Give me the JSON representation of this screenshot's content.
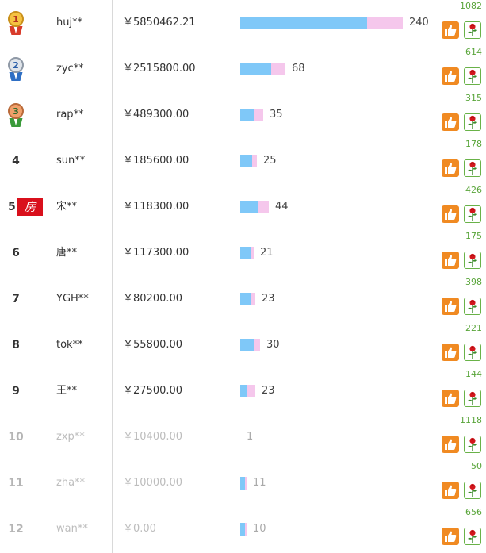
{
  "colors": {
    "bar_blue": "#7fc8f8",
    "bar_pink": "#f5c7ec",
    "like": "#f08a22",
    "flower_border": "#69b248",
    "vote_count": "#59a53a",
    "dim_text": "#bdbdbd"
  },
  "rows": [
    {
      "rank": "1",
      "medal": "gold",
      "name": "huj**",
      "amount": "￥5850462.21",
      "blue": 160,
      "pink": 45,
      "count": "240",
      "votes": "1082"
    },
    {
      "rank": "2",
      "medal": "silver",
      "name": "zyc**",
      "amount": "￥2515800.00",
      "blue": 39,
      "pink": 18,
      "count": "68",
      "votes": "614"
    },
    {
      "rank": "3",
      "medal": "bronze",
      "name": "rap**",
      "amount": "￥489300.00",
      "blue": 18,
      "pink": 11,
      "count": "35",
      "votes": "315"
    },
    {
      "rank": "4",
      "name": "sun**",
      "amount": "￥185600.00",
      "blue": 15,
      "pink": 6,
      "count": "25",
      "votes": "178"
    },
    {
      "rank": "5",
      "badge": "房",
      "name": "宋**",
      "amount": "￥118300.00",
      "blue": 23,
      "pink": 13,
      "count": "44",
      "votes": "426"
    },
    {
      "rank": "6",
      "name": "唐**",
      "amount": "￥117300.00",
      "blue": 13,
      "pink": 4,
      "count": "21",
      "votes": "175"
    },
    {
      "rank": "7",
      "name": "YGH**",
      "amount": "￥80200.00",
      "blue": 13,
      "pink": 6,
      "count": "23",
      "votes": "398"
    },
    {
      "rank": "8",
      "name": "tok**",
      "amount": "￥55800.00",
      "blue": 17,
      "pink": 8,
      "count": "30",
      "votes": "221"
    },
    {
      "rank": "9",
      "name": "王**",
      "amount": "￥27500.00",
      "blue": 8,
      "pink": 11,
      "count": "23",
      "votes": "144"
    },
    {
      "rank": "10",
      "dim": true,
      "name": "zxp**",
      "amount": "￥10400.00",
      "blue": 0,
      "pink": 0,
      "count": "1",
      "votes": "1118"
    },
    {
      "rank": "11",
      "dim": true,
      "name": "zha**",
      "amount": "￥10000.00",
      "blue": 6,
      "pink": 2,
      "count": "11",
      "votes": "50"
    },
    {
      "rank": "12",
      "dim": true,
      "name": "wan**",
      "amount": "￥0.00",
      "blue": 6,
      "pink": 2,
      "count": "10",
      "votes": "656"
    }
  ]
}
